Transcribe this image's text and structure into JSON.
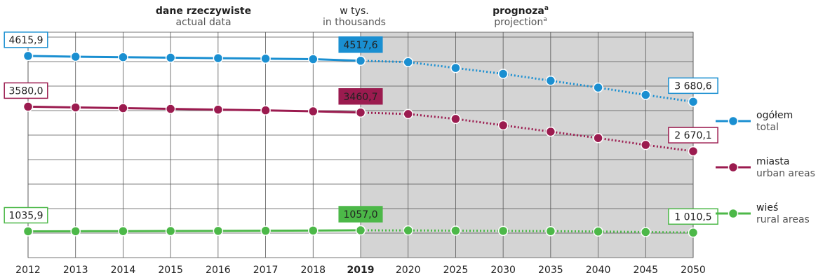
{
  "chart_data": {
    "type": "line",
    "header_actual": "dane rzeczywiste",
    "header_actual_en": "actual data",
    "unit": "w tys.",
    "unit_en": "in thousands",
    "header_projection": "prognoza",
    "header_projection_en": "projection",
    "footnote_mark": "a",
    "categories": [
      "2012",
      "2013",
      "2014",
      "2015",
      "2016",
      "2017",
      "2018",
      "2019",
      "2020",
      "2025",
      "2030",
      "2035",
      "2040",
      "2045",
      "2050"
    ],
    "series": [
      {
        "name": "ogółem",
        "name_en": "total",
        "color": "#1a8fd1",
        "values": [
          4615.9,
          4600,
          4590,
          4580,
          4570,
          4560,
          4550,
          4517.6,
          4490,
          4370,
          4250,
          4110,
          3970,
          3820,
          3680.6
        ],
        "value_labels": [
          "4615,9",
          null,
          null,
          null,
          null,
          null,
          null,
          "4517,6",
          null,
          null,
          null,
          null,
          null,
          null,
          "3 680,6"
        ]
      },
      {
        "name": "miasta",
        "name_en": "urban areas",
        "color": "#9b1b4f",
        "values": [
          3580.0,
          3565,
          3550,
          3535,
          3520,
          3505,
          3485,
          3460.7,
          3430,
          3330,
          3200,
          3070,
          2940,
          2800,
          2670.1
        ],
        "value_labels": [
          "3580,0",
          null,
          null,
          null,
          null,
          null,
          null,
          "3460,7",
          null,
          null,
          null,
          null,
          null,
          null,
          "2 670,1"
        ]
      },
      {
        "name": "wieś",
        "name_en": "rural areas",
        "color": "#4cb848",
        "values": [
          1035.9,
          1038,
          1040,
          1042,
          1045,
          1048,
          1052,
          1057.0,
          1055,
          1050,
          1045,
          1040,
          1032,
          1022,
          1010.5
        ],
        "value_labels": [
          "1035,9",
          null,
          null,
          null,
          null,
          null,
          null,
          "1057,0",
          null,
          null,
          null,
          null,
          null,
          null,
          "1 010,5"
        ]
      }
    ],
    "ylim": [
      500,
      5100
    ],
    "yticks": [
      1000,
      1500,
      2000,
      2500,
      3000,
      3500,
      4000,
      4500,
      5000
    ],
    "grid": true
  }
}
